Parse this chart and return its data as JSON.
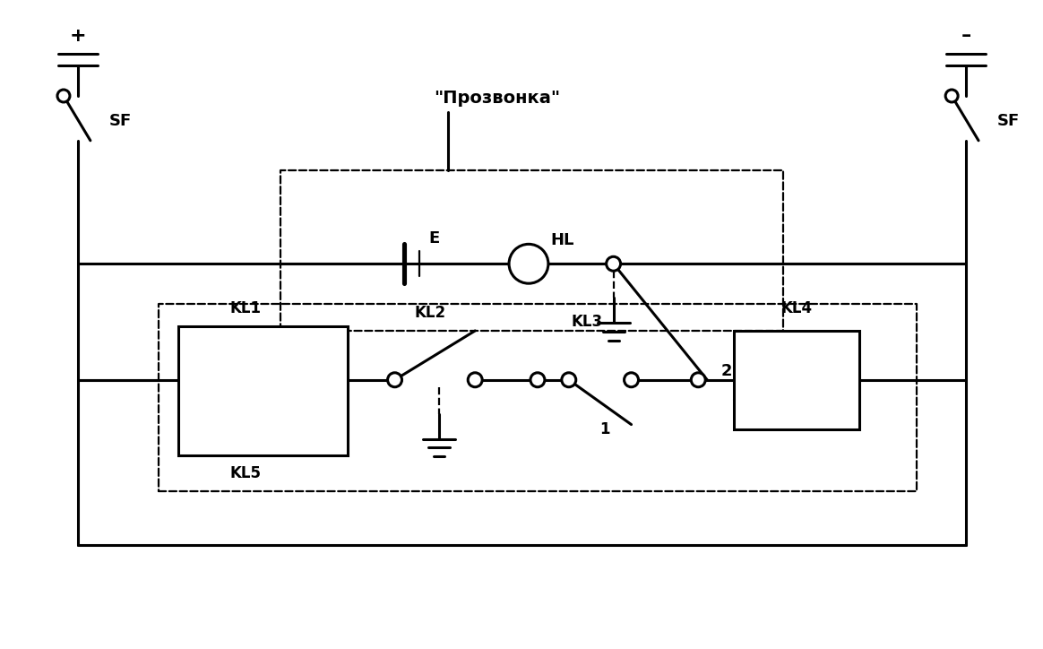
{
  "bg_color": "#ffffff",
  "line_color": "#000000",
  "lw": 2.2,
  "lw_dash": 1.6,
  "fig_width": 11.64,
  "fig_height": 7.24,
  "labels": {
    "SF": "SF",
    "plus": "+",
    "minus": "-",
    "E": "E",
    "HL": "HL",
    "KL1": "KL1",
    "KL2": "KL2",
    "KL3": "KL3",
    "KL4": "KL4",
    "KL5": "KL5",
    "prozvonka": "Прозвонка",
    "num2": "2",
    "num1": "1"
  }
}
